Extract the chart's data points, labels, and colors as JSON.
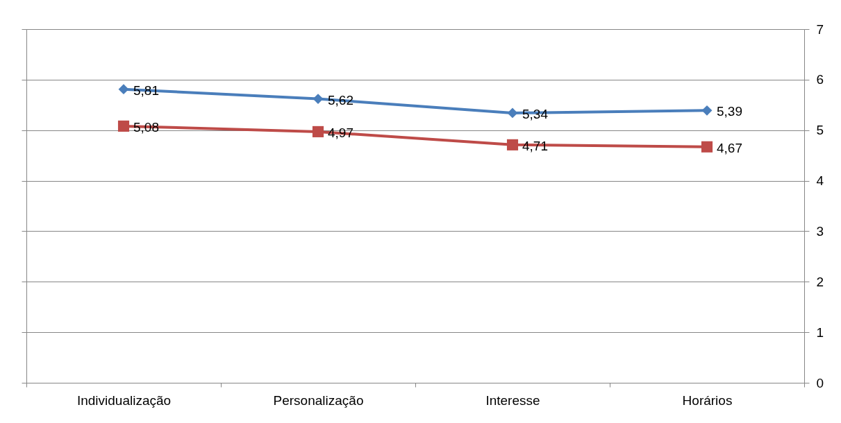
{
  "chart_data": {
    "type": "line",
    "categories": [
      "Individualização",
      "Personalização",
      "Interesse",
      "Horários"
    ],
    "series": [
      {
        "color": "#4a7ebb",
        "marker": "diamond",
        "values": [
          5.81,
          5.62,
          5.34,
          5.39
        ],
        "value_labels": [
          "5,81",
          "5,62",
          "5,34",
          "5,39"
        ]
      },
      {
        "color": "#be4b48",
        "marker": "square",
        "values": [
          5.08,
          4.97,
          4.71,
          4.67
        ],
        "value_labels": [
          "5,08",
          "4,97",
          "4,71",
          "4,67"
        ]
      }
    ],
    "ylim": [
      0,
      7
    ],
    "yticks": [
      0,
      1,
      2,
      3,
      4,
      5,
      6,
      7
    ],
    "grid": "y"
  }
}
